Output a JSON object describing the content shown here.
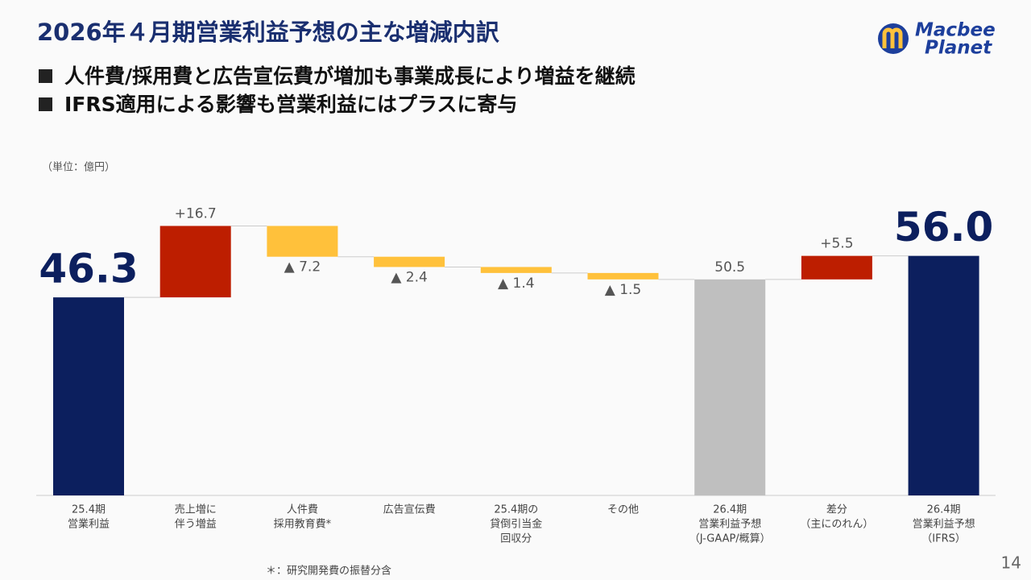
{
  "title": "2026年４月期営業利益予想の主な増減内訳",
  "bullets": [
    "人件費/採用費と広告宣伝費が増加も事業成長により増益を継続",
    "IFRS適用による影響も営業利益にはプラスに寄与"
  ],
  "logo": [
    "Macbee",
    "Planet"
  ],
  "page_number": "14",
  "footnote": "＊：研究開発費の振替分含",
  "chart_data": {
    "type": "waterfall",
    "unit_label": "（単位：億円）",
    "categories": [
      [
        "25.4期",
        "営業利益"
      ],
      [
        "売上増に",
        "伴う増益"
      ],
      [
        "人件費",
        "採用教育費*"
      ],
      [
        "広告宣伝費"
      ],
      [
        "25.4期の",
        "貸倒引当金",
        "回収分"
      ],
      [
        "その他"
      ],
      [
        "26.4期",
        "営業利益予想",
        "（J-GAAP/概算）"
      ],
      [
        "差分",
        "（主にのれん）"
      ],
      [
        "26.4期",
        "営業利益予想",
        "（IFRS）"
      ]
    ],
    "values": [
      46.3,
      16.7,
      -7.2,
      -2.4,
      -1.4,
      -1.5,
      50.5,
      5.5,
      56.0
    ],
    "value_labels": [
      "46.3",
      "+16.7",
      "▲ 7.2",
      "▲ 2.4",
      "▲ 1.4",
      "▲ 1.5",
      "50.5",
      "+5.5",
      "56.0"
    ],
    "measure": [
      "absolute",
      "relative",
      "relative",
      "relative",
      "relative",
      "relative",
      "absolute",
      "relative",
      "absolute"
    ],
    "colors": [
      "#0c1f5e",
      "#bd1e00",
      "#ffc13b",
      "#ffc13b",
      "#ffc13b",
      "#ffc13b",
      "#bfbfbf",
      "#bd1e00",
      "#0c1f5e"
    ],
    "highlight": [
      true,
      false,
      false,
      false,
      false,
      false,
      false,
      false,
      true
    ]
  }
}
